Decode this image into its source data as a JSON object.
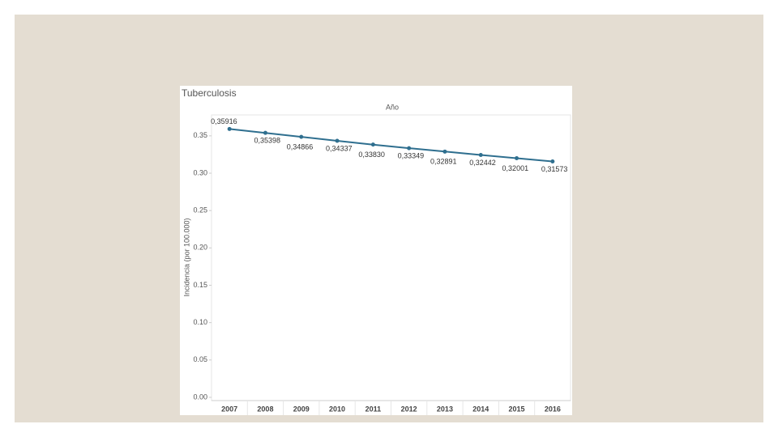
{
  "chart_data": {
    "type": "line",
    "title": "Tuberculosis",
    "x_label": "Año",
    "y_label": "Incidencia (por 100.000)",
    "categories": [
      "2007",
      "2008",
      "2009",
      "2010",
      "2011",
      "2012",
      "2013",
      "2014",
      "2015",
      "2016"
    ],
    "series": [
      {
        "name": "Tuberculosis",
        "color": "#2f6f8f",
        "values": [
          0.35916,
          0.35398,
          0.34866,
          0.34337,
          0.3383,
          0.33349,
          0.32891,
          0.32442,
          0.32001,
          0.31573
        ],
        "value_labels": [
          "0,35916",
          "0,35398",
          "0,34866",
          "0,34337",
          "0,33830",
          "0,33349",
          "0,32891",
          "0,32442",
          "0,32001",
          "0,31573"
        ]
      }
    ],
    "ylim": [
      0,
      0.378
    ],
    "yticks": [
      {
        "value": 0,
        "label": "0.00"
      },
      0.05,
      {
        "value": 0.1,
        "label": "0.10"
      },
      0.15,
      {
        "value": 0.2,
        "label": "0.20"
      },
      0.25,
      {
        "value": 0.3,
        "label": "0.30"
      },
      0.35
    ]
  }
}
